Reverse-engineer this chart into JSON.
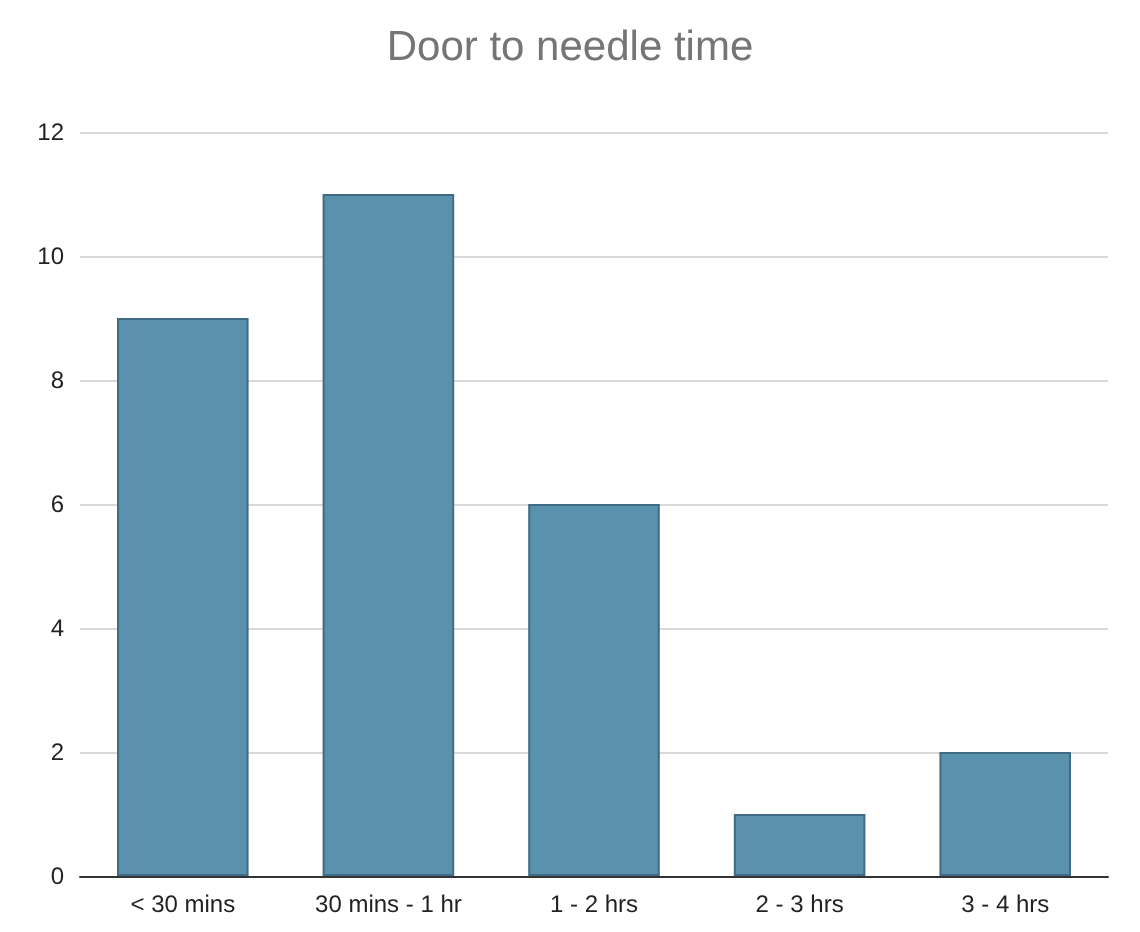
{
  "chart_data": {
    "type": "bar",
    "title": "Door to needle time",
    "categories": [
      "< 30 mins",
      "30 mins - 1 hr",
      "1 - 2 hrs",
      "2 - 3 hrs",
      "3 - 4 hrs"
    ],
    "values": [
      9,
      11,
      6,
      1,
      2
    ],
    "color": "#5a91ad",
    "ylim": [
      0,
      12
    ],
    "yticks": [
      0,
      2,
      4,
      6,
      8,
      10,
      12
    ],
    "grid": "y"
  }
}
